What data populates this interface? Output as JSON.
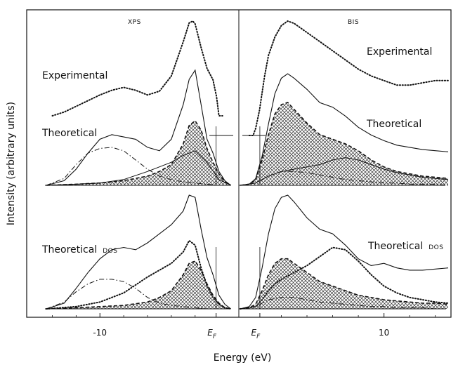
{
  "chart_data": [
    {
      "type": "line",
      "panel": "XPS",
      "title": "XPS",
      "xlabel": "Energy (eV)",
      "ylabel": "Intensity  (arbitrary units)",
      "xlim": [
        -14.5,
        1.2
      ],
      "ylim": [
        0,
        1
      ],
      "x_ticks": [
        {
          "value": -10,
          "label": "-10"
        }
      ],
      "fermi_label": "E",
      "fermi_sub": "F",
      "fermi_x": 0,
      "labels": {
        "experimental": "Experimental",
        "theoretical": "Theoretical",
        "theoretical_dos": "Theoretical",
        "dos": "DOS"
      },
      "series": [
        {
          "name": "Experimental",
          "group": "upper",
          "style": "dotted",
          "x": [
            -14,
            -13,
            -12,
            -11,
            -10,
            -9,
            -8,
            -7,
            -6,
            -5,
            -4,
            -3,
            -2.5,
            -2.2,
            -2,
            -1.5,
            -1,
            -0.5,
            -0.2,
            0,
            0.3
          ],
          "y": [
            0.0,
            0.04,
            0.1,
            0.16,
            0.22,
            0.27,
            0.3,
            0.27,
            0.22,
            0.26,
            0.42,
            0.78,
            0.98,
            1.0,
            0.97,
            0.72,
            0.5,
            0.38,
            0.2,
            0.0,
            0.0
          ]
        },
        {
          "name": "Theoretical",
          "group": "upper",
          "style": "solid",
          "x": [
            -14.5,
            -13,
            -12,
            -11,
            -10,
            -9,
            -8,
            -7,
            -6,
            -5,
            -4,
            -3,
            -2.5,
            -2,
            -1.5,
            -1,
            -0.5,
            0,
            0.5,
            1
          ],
          "y": [
            0.0,
            0.04,
            0.14,
            0.28,
            0.4,
            0.44,
            0.42,
            0.4,
            0.33,
            0.3,
            0.4,
            0.7,
            0.92,
            1.0,
            0.7,
            0.4,
            0.28,
            0.12,
            0.04,
            0.0
          ]
        },
        {
          "name": "",
          "group": "upper",
          "style": "dashdot",
          "x": [
            -14.5,
            -13,
            -12,
            -11,
            -10,
            -9,
            -8,
            -7,
            -6,
            -5,
            -4,
            -3,
            -2,
            -1,
            0,
            1
          ],
          "y": [
            0.0,
            0.06,
            0.18,
            0.28,
            0.32,
            0.33,
            0.3,
            0.22,
            0.14,
            0.08,
            0.05,
            0.03,
            0.02,
            0.01,
            0.0,
            0.0
          ]
        },
        {
          "name": "",
          "group": "upper",
          "style": "hatched-dashed",
          "x": [
            -14.5,
            -12,
            -10,
            -8,
            -6,
            -5,
            -4,
            -3,
            -2.5,
            -2,
            -1.5,
            -1,
            -0.5,
            0,
            0.5,
            1
          ],
          "y": [
            0.0,
            0.01,
            0.02,
            0.04,
            0.08,
            0.12,
            0.18,
            0.36,
            0.52,
            0.56,
            0.48,
            0.32,
            0.2,
            0.1,
            0.03,
            0.0
          ]
        },
        {
          "name": "",
          "group": "upper",
          "style": "solid-thin",
          "x": [
            -14.5,
            -12,
            -10,
            -8,
            -6,
            -4,
            -3,
            -2,
            -1,
            0,
            1
          ],
          "y": [
            0.0,
            0.01,
            0.02,
            0.05,
            0.12,
            0.2,
            0.26,
            0.3,
            0.2,
            0.05,
            0.0
          ]
        },
        {
          "name": "Theoretical DOS",
          "group": "lower",
          "style": "solid",
          "x": [
            -14.5,
            -13,
            -12,
            -11,
            -10,
            -9,
            -8,
            -7,
            -6,
            -5,
            -4,
            -3,
            -2.5,
            -2,
            -1.5,
            -1,
            -0.5,
            0,
            0.5,
            1
          ],
          "y": [
            0.0,
            0.05,
            0.18,
            0.32,
            0.44,
            0.52,
            0.54,
            0.52,
            0.58,
            0.66,
            0.74,
            0.86,
            1.0,
            0.98,
            0.7,
            0.45,
            0.3,
            0.12,
            0.04,
            0.0
          ]
        },
        {
          "name": "",
          "group": "lower",
          "style": "dotted",
          "x": [
            -14.5,
            -12,
            -10,
            -8,
            -6,
            -4,
            -3,
            -2.5,
            -2,
            -1.5,
            -1,
            -0.5,
            0,
            0.5,
            1
          ],
          "y": [
            0.0,
            0.02,
            0.06,
            0.14,
            0.28,
            0.4,
            0.5,
            0.6,
            0.56,
            0.36,
            0.2,
            0.1,
            0.04,
            0.01,
            0.0
          ]
        },
        {
          "name": "",
          "group": "lower",
          "style": "dashdot",
          "x": [
            -14.5,
            -13,
            -12,
            -11,
            -10,
            -9,
            -8,
            -7,
            -6,
            -5,
            -4,
            -3,
            -2,
            -1,
            0,
            1
          ],
          "y": [
            0.0,
            0.06,
            0.15,
            0.22,
            0.26,
            0.26,
            0.24,
            0.18,
            0.1,
            0.05,
            0.03,
            0.02,
            0.01,
            0.0,
            0.0,
            0.0
          ]
        },
        {
          "name": "",
          "group": "lower",
          "style": "hatched-dashed",
          "x": [
            -14.5,
            -12,
            -10,
            -8,
            -6,
            -5,
            -4,
            -3,
            -2.5,
            -2,
            -1.5,
            -1,
            -0.5,
            0,
            0.5,
            1
          ],
          "y": [
            0.0,
            0.01,
            0.02,
            0.03,
            0.06,
            0.1,
            0.16,
            0.3,
            0.4,
            0.42,
            0.34,
            0.22,
            0.12,
            0.05,
            0.01,
            0.0
          ]
        }
      ]
    },
    {
      "type": "line",
      "panel": "BIS",
      "title": "BIS",
      "xlabel": "Energy (eV)",
      "xlim": [
        -1.2,
        15
      ],
      "ylim": [
        0,
        1
      ],
      "x_ticks": [
        {
          "value": 10,
          "label": "10"
        }
      ],
      "fermi_label": "E",
      "fermi_sub": "F",
      "fermi_x": 0,
      "labels": {
        "experimental": "Experimental",
        "theoretical": "Theoretical",
        "theoretical_dos": "Theoretical",
        "dos": "DOS"
      },
      "series": [
        {
          "name": "Experimental",
          "group": "upper",
          "style": "dotted",
          "x": [
            -0.5,
            -0.2,
            0,
            0.3,
            0.7,
            1,
            1.5,
            2,
            2.5,
            3,
            4,
            5,
            6,
            7,
            8,
            9,
            10,
            11,
            12,
            13,
            14,
            15
          ],
          "y": [
            0.0,
            0.0,
            0.06,
            0.22,
            0.52,
            0.7,
            0.86,
            0.96,
            1.0,
            0.98,
            0.9,
            0.82,
            0.74,
            0.66,
            0.58,
            0.52,
            0.48,
            0.44,
            0.44,
            0.46,
            0.48,
            0.48
          ]
        },
        {
          "name": "Theoretical",
          "group": "upper",
          "style": "solid",
          "x": [
            -1.2,
            -0.5,
            0,
            0.5,
            1,
            1.5,
            2,
            2.5,
            3,
            4,
            5,
            6,
            7,
            8,
            9,
            10,
            11,
            12,
            13,
            14,
            15
          ],
          "y": [
            0.0,
            0.01,
            0.06,
            0.26,
            0.55,
            0.82,
            0.96,
            1.0,
            0.96,
            0.86,
            0.74,
            0.7,
            0.62,
            0.52,
            0.45,
            0.4,
            0.36,
            0.34,
            0.32,
            0.31,
            0.3
          ]
        },
        {
          "name": "",
          "group": "upper",
          "style": "hatched-dashed",
          "x": [
            -1.2,
            -0.5,
            0,
            0.5,
            1,
            1.5,
            2,
            2.5,
            3,
            4,
            5,
            6,
            7,
            8,
            9,
            10,
            11,
            12,
            13,
            14,
            15
          ],
          "y": [
            0.0,
            0.01,
            0.05,
            0.22,
            0.44,
            0.62,
            0.7,
            0.72,
            0.66,
            0.54,
            0.44,
            0.4,
            0.36,
            0.3,
            0.22,
            0.16,
            0.12,
            0.1,
            0.08,
            0.07,
            0.06
          ]
        },
        {
          "name": "",
          "group": "upper",
          "style": "solid-thin",
          "x": [
            -1.2,
            0,
            1,
            2,
            3,
            4,
            5,
            6,
            7,
            8,
            9,
            10,
            11,
            12,
            13,
            14,
            15
          ],
          "y": [
            0.0,
            0.02,
            0.08,
            0.12,
            0.14,
            0.16,
            0.18,
            0.22,
            0.24,
            0.22,
            0.18,
            0.14,
            0.11,
            0.09,
            0.07,
            0.06,
            0.05
          ]
        },
        {
          "name": "",
          "group": "upper",
          "style": "dashdot",
          "x": [
            -1.2,
            0,
            1,
            2,
            3,
            4,
            5,
            6,
            7,
            8,
            9,
            10,
            11,
            12,
            13,
            14,
            15
          ],
          "y": [
            0.0,
            0.02,
            0.08,
            0.12,
            0.12,
            0.11,
            0.09,
            0.07,
            0.05,
            0.04,
            0.03,
            0.02,
            0.02,
            0.01,
            0.01,
            0.01,
            0.0
          ]
        },
        {
          "name": "Theoretical DOS",
          "group": "lower",
          "style": "solid",
          "x": [
            -1.2,
            -0.5,
            0,
            0.5,
            1,
            1.5,
            2,
            2.5,
            3,
            4,
            5,
            6,
            7,
            8,
            9,
            10,
            11,
            12,
            13,
            14,
            15
          ],
          "y": [
            0.0,
            0.02,
            0.1,
            0.36,
            0.66,
            0.88,
            0.98,
            1.0,
            0.94,
            0.8,
            0.7,
            0.66,
            0.56,
            0.44,
            0.38,
            0.4,
            0.36,
            0.34,
            0.34,
            0.35,
            0.36
          ]
        },
        {
          "name": "",
          "group": "lower",
          "style": "dotted",
          "x": [
            -1.2,
            0,
            0.5,
            1,
            1.5,
            2,
            3,
            4,
            5,
            6,
            7,
            8,
            9,
            10,
            11,
            12,
            13,
            14,
            15
          ],
          "y": [
            0.0,
            0.02,
            0.08,
            0.16,
            0.22,
            0.26,
            0.32,
            0.38,
            0.46,
            0.54,
            0.52,
            0.42,
            0.3,
            0.2,
            0.14,
            0.1,
            0.08,
            0.06,
            0.05
          ]
        },
        {
          "name": "",
          "group": "lower",
          "style": "hatched-dashed",
          "x": [
            -1.2,
            -0.5,
            0,
            0.5,
            1,
            1.5,
            2,
            2.5,
            3,
            4,
            5,
            6,
            7,
            8,
            9,
            10,
            11,
            12,
            13,
            14,
            15
          ],
          "y": [
            0.0,
            0.01,
            0.04,
            0.16,
            0.3,
            0.4,
            0.44,
            0.44,
            0.4,
            0.32,
            0.24,
            0.2,
            0.16,
            0.12,
            0.1,
            0.08,
            0.07,
            0.06,
            0.05,
            0.05,
            0.04
          ]
        },
        {
          "name": "",
          "group": "lower",
          "style": "dashdot",
          "x": [
            -1.2,
            0,
            1,
            2,
            3,
            4,
            5,
            6,
            7,
            8,
            9,
            10,
            11,
            12,
            13,
            14,
            15
          ],
          "y": [
            0.0,
            0.02,
            0.08,
            0.1,
            0.1,
            0.08,
            0.06,
            0.05,
            0.04,
            0.03,
            0.02,
            0.02,
            0.01,
            0.01,
            0.01,
            0.0,
            0.0
          ]
        }
      ]
    }
  ]
}
